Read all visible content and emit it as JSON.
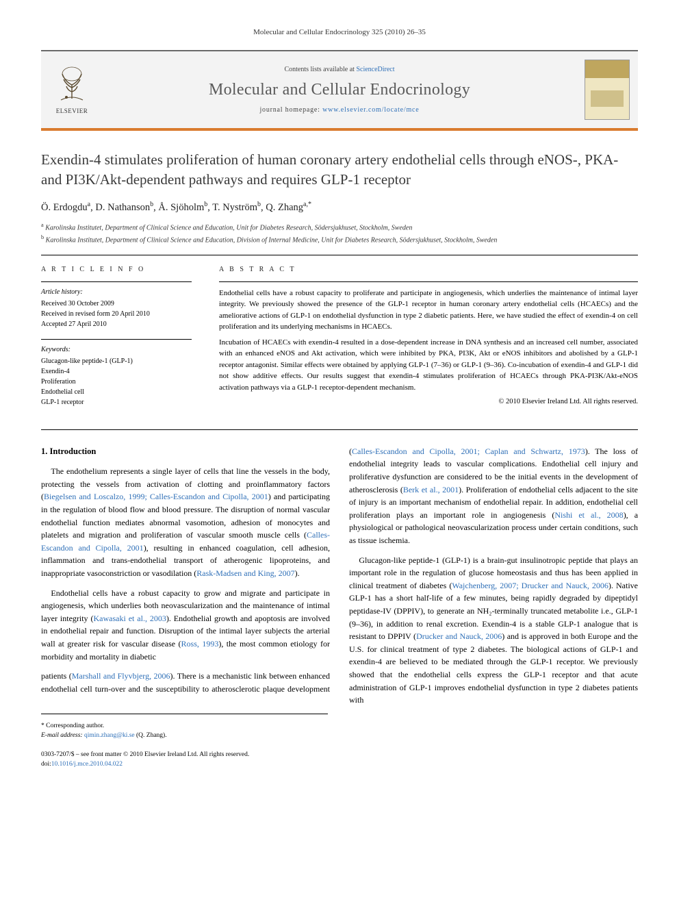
{
  "running_head": "Molecular and Cellular Endocrinology 325 (2010) 26–35",
  "masthead": {
    "contents_prefix": "Contents lists available at ",
    "contents_link": "ScienceDirect",
    "journal_name": "Molecular and Cellular Endocrinology",
    "homepage_prefix": "journal homepage: ",
    "homepage_url": "www.elsevier.com/locate/mce",
    "publisher": "ELSEVIER"
  },
  "title": "Exendin-4 stimulates proliferation of human coronary artery endothelial cells through eNOS-, PKA- and PI3K/Akt-dependent pathways and requires GLP-1 receptor",
  "authors_html": "Ö. Erdogdu<sup>a</sup>, D. Nathanson<sup>b</sup>, Å. Sjöholm<sup>b</sup>, T. Nyström<sup>b</sup>, Q. Zhang<sup>a,*</sup>",
  "affiliations": [
    {
      "sup": "a",
      "text": "Karolinska Institutet, Department of Clinical Science and Education, Unit for Diabetes Research, Södersjukhuset, Stockholm, Sweden"
    },
    {
      "sup": "b",
      "text": "Karolinska Institutet, Department of Clinical Science and Education, Division of Internal Medicine, Unit for Diabetes Research, Södersjukhuset, Stockholm, Sweden"
    }
  ],
  "article_info": {
    "heading": "A R T I C L E   I N F O",
    "history_label": "Article history:",
    "history": [
      "Received 30 October 2009",
      "Received in revised form 20 April 2010",
      "Accepted 27 April 2010"
    ],
    "keywords_label": "Keywords:",
    "keywords": [
      "Glucagon-like peptide-1 (GLP-1)",
      "Exendin-4",
      "Proliferation",
      "Endothelial cell",
      "GLP-1 receptor"
    ]
  },
  "abstract": {
    "heading": "A B S T R A C T",
    "paragraphs": [
      "Endothelial cells have a robust capacity to proliferate and participate in angiogenesis, which underlies the maintenance of intimal layer integrity. We previously showed the presence of the GLP-1 receptor in human coronary artery endothelial cells (HCAECs) and the ameliorative actions of GLP-1 on endothelial dysfunction in type 2 diabetic patients. Here, we have studied the effect of exendin-4 on cell proliferation and its underlying mechanisms in HCAECs.",
      "Incubation of HCAECs with exendin-4 resulted in a dose-dependent increase in DNA synthesis and an increased cell number, associated with an enhanced eNOS and Akt activation, which were inhibited by PKA, PI3K, Akt or eNOS inhibitors and abolished by a GLP-1 receptor antagonist. Similar effects were obtained by applying GLP-1 (7–36) or GLP-1 (9–36). Co-incubation of exendin-4 and GLP-1 did not show additive effects. Our results suggest that exendin-4 stimulates proliferation of HCAECs through PKA-PI3K/Akt-eNOS activation pathways via a GLP-1 receptor-dependent mechanism."
    ],
    "copyright": "© 2010 Elsevier Ireland Ltd. All rights reserved."
  },
  "section1": {
    "heading": "1. Introduction",
    "p1_a": "The endothelium represents a single layer of cells that line the vessels in the body, protecting the vessels from activation of clotting and proinflammatory factors (",
    "p1_c1": "Biegelsen and Loscalzo, 1999; Calles-Escandon and Cipolla, 2001",
    "p1_b": ") and participating in the regulation of blood flow and blood pressure. The disruption of normal vascular endothelial function mediates abnormal vasomotion, adhesion of monocytes and platelets and migration and proliferation of vascular smooth muscle cells (",
    "p1_c2": "Calles-Escandon and Cipolla, 2001",
    "p1_c": "), resulting in enhanced coagulation, cell adhesion, inflammation and trans-endothelial transport of atherogenic lipoproteins, and inappropriate vasoconstriction or vasodilation (",
    "p1_c3": "Rask-Madsen and King, 2007",
    "p1_d": ").",
    "p2_a": "Endothelial cells have a robust capacity to grow and migrate and participate in angiogenesis, which underlies both neovascularization and the maintenance of intimal layer integrity (",
    "p2_c1": "Kawasaki et al., 2003",
    "p2_b": "). Endothelial growth and apoptosis are involved in endothelial repair and function. Disruption of the intimal layer subjects the arterial wall at greater risk for vascular disease (",
    "p2_c2": "Ross, 1993",
    "p2_c": "), the most common etiology for morbidity and mortality in diabetic",
    "p3_a": "patients (",
    "p3_c1": "Marshall and Flyvbjerg, 2006",
    "p3_b": "). There is a mechanistic link between enhanced endothelial cell turn-over and the susceptibility to atherosclerotic plaque development (",
    "p3_c2": "Calles-Escandon and Cipolla, 2001; Caplan and Schwartz, 1973",
    "p3_c": "). The loss of endothelial integrity leads to vascular complications. Endothelial cell injury and proliferative dysfunction are considered to be the initial events in the development of atherosclerosis (",
    "p3_c3": "Berk et al., 2001",
    "p3_d": "). Proliferation of endothelial cells adjacent to the site of injury is an important mechanism of endothelial repair. In addition, endothelial cell proliferation plays an important role in angiogenesis (",
    "p3_c4": "Nishi et al., 2008",
    "p3_e": "), a physiological or pathological neovascularization process under certain conditions, such as tissue ischemia.",
    "p4_a": "Glucagon-like peptide-1 (GLP-1) is a brain-gut insulinotropic peptide that plays an important role in the regulation of glucose homeostasis and thus has been applied in clinical treatment of diabetes (",
    "p4_c1": "Wajchenberg, 2007; Drucker and Nauck, 2006",
    "p4_b": "). Native GLP-1 has a short half-life of a few minutes, being rapidly degraded by dipeptidyl peptidase-IV (DPPIV), to generate an NH₂-terminally truncated metabolite i.e., GLP-1 (9–36), in addition to renal excretion. Exendin-4 is a stable GLP-1 analogue that is resistant to DPPIV (",
    "p4_c2": "Drucker and Nauck, 2006",
    "p4_c": ") and is approved in both Europe and the U.S. for clinical treatment of type 2 diabetes. The biological actions of GLP-1 and exendin-4 are believed to be mediated through the GLP-1 receptor. We previously showed that the endothelial cells express the GLP-1 receptor and that acute administration of GLP-1 improves endothelial dysfunction in type 2 diabetes patients with"
  },
  "footnote": {
    "corr_label": "* Corresponding author.",
    "email_label": "E-mail address: ",
    "email": "qimin.zhang@ki.se",
    "email_tail": " (Q. Zhang)."
  },
  "footer": {
    "issn": "0303-7207/$ – see front matter © 2010 Elsevier Ireland Ltd. All rights reserved.",
    "doi_prefix": "doi:",
    "doi": "10.1016/j.mce.2010.04.022"
  },
  "colors": {
    "accent_orange": "#d97b2e",
    "link_blue": "#2e6fb7",
    "header_gray": "#5a5a5a"
  }
}
